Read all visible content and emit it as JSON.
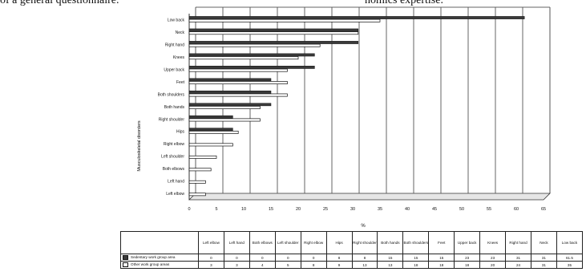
{
  "caption": {
    "left": "of a general questionnaire.",
    "right": "nomics expertise."
  },
  "colors": {
    "series_dark": "#3a3a3a",
    "series_light": "#ffffff",
    "gridlines": "#555555",
    "frame": "#333333"
  },
  "chart_data": {
    "type": "bar",
    "orientation": "horizontal",
    "title": "",
    "xlabel": "%",
    "ylabel": "Musculoskeletal disorders",
    "xlim": [
      0,
      65
    ],
    "xticks": [
      0,
      5,
      10,
      15,
      20,
      25,
      30,
      35,
      40,
      45,
      50,
      55,
      60,
      65
    ],
    "grid": true,
    "categories": [
      "Low back",
      "Neck",
      "Right hand",
      "Knees",
      "Upper back",
      "Feet",
      "Both shoulders",
      "Both hands",
      "Right shoulder",
      "Hips",
      "Right elbow",
      "Left shoulder",
      "Both elbows",
      "Left hand",
      "Left elbow"
    ],
    "series": [
      {
        "name": "Sedentary work group area",
        "values": [
          61.5,
          31,
          31,
          23,
          23,
          15,
          15,
          15,
          8,
          8,
          0,
          0,
          0,
          0,
          0
        ]
      },
      {
        "name": "Other work group areas",
        "values": [
          35,
          31,
          24,
          20,
          18,
          18,
          18,
          13,
          13,
          9,
          8,
          5,
          4,
          3,
          3
        ]
      }
    ]
  },
  "table": {
    "headers": [
      "Left elbow",
      "Left hand",
      "Both elbows",
      "Left shoulder",
      "Right elbow",
      "Hips",
      "Right shoulder",
      "Both hands",
      "Both shoulders",
      "Feet",
      "Upper back",
      "Knees",
      "Right hand",
      "Neck",
      "Low back"
    ],
    "rows": [
      {
        "label": "Sedentary work group area",
        "values": [
          "0",
          "0",
          "0",
          "0",
          "0",
          "8",
          "8",
          "15",
          "15",
          "15",
          "23",
          "23",
          "31",
          "31",
          "61.5"
        ]
      },
      {
        "label": "Other work group areas",
        "values": [
          "3",
          "3",
          "4",
          "5",
          "8",
          "9",
          "13",
          "13",
          "18",
          "18",
          "18",
          "20",
          "24",
          "31",
          "35"
        ]
      }
    ]
  }
}
